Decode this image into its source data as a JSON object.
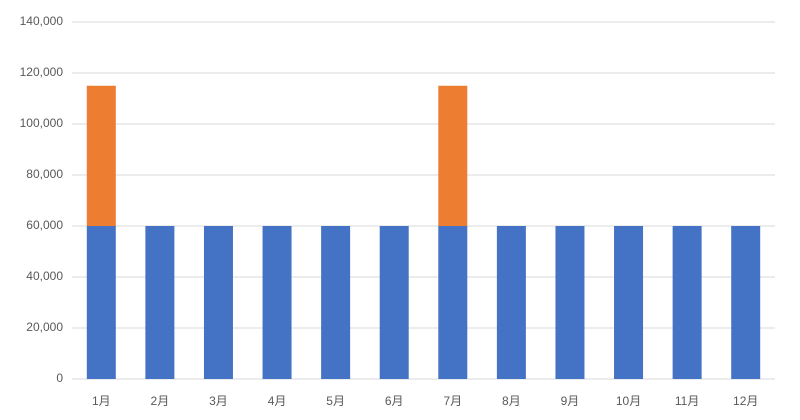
{
  "chart_data": {
    "type": "stacked_bar",
    "categories": [
      "1月",
      "2月",
      "3月",
      "4月",
      "5月",
      "6月",
      "7月",
      "8月",
      "9月",
      "10月",
      "11月",
      "12月"
    ],
    "series": [
      {
        "color": "#4472c4",
        "values": [
          60000,
          60000,
          60000,
          60000,
          60000,
          60000,
          60000,
          60000,
          60000,
          60000,
          60000,
          60000
        ]
      },
      {
        "color": "#ed7d31",
        "values": [
          55000,
          0,
          0,
          0,
          0,
          0,
          55000,
          0,
          0,
          0,
          0,
          0
        ]
      }
    ],
    "ylim": [
      0,
      140000
    ],
    "yticks": [
      0,
      {
        "value": 20000,
        "label": "20,000"
      },
      {
        "value": 40000,
        "label": "40,000"
      },
      {
        "value": 60000,
        "label": "60,000"
      },
      {
        "value": 80000,
        "label": "80,000"
      },
      {
        "value": 100000,
        "label": "100,000"
      },
      {
        "value": 120000,
        "label": "120,000"
      },
      {
        "value": 140000,
        "label": "140,000"
      }
    ],
    "grid": true
  }
}
